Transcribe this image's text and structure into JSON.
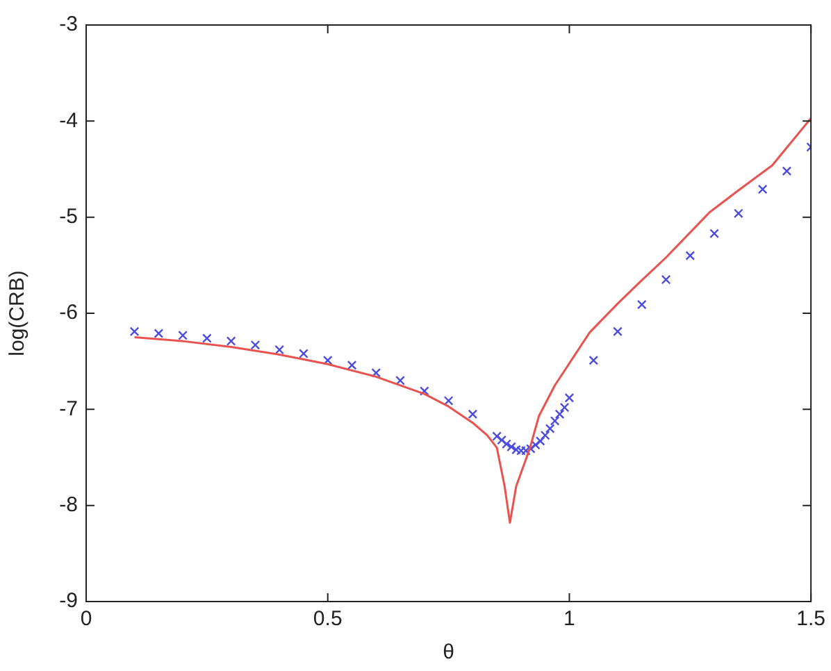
{
  "chart_data": {
    "type": "line",
    "xlabel": "θ",
    "ylabel": "log(CRB)",
    "xlim": [
      0,
      1.5
    ],
    "xticks": [
      0,
      0.5,
      1,
      1.5
    ],
    "ylim": [
      -9,
      -3
    ],
    "yticks": [
      -9,
      -8,
      -7,
      -6,
      -5,
      -4,
      -3
    ],
    "grid": false,
    "legend": false,
    "series": [
      {
        "color": "#e8524f",
        "marker": "none",
        "x": [
          0.1,
          0.2,
          0.3,
          0.4,
          0.5,
          0.6,
          0.7,
          0.75,
          0.8,
          0.83,
          0.85,
          0.866,
          0.877,
          0.89,
          0.918,
          0.937,
          0.97,
          1.042,
          1.1,
          1.147,
          1.2,
          1.29,
          1.35,
          1.42,
          1.5
        ],
        "values": [
          -6.25,
          -6.29,
          -6.35,
          -6.43,
          -6.53,
          -6.66,
          -6.84,
          -6.97,
          -7.14,
          -7.27,
          -7.4,
          -7.8,
          -8.18,
          -7.8,
          -7.41,
          -7.07,
          -6.75,
          -6.2,
          -5.9,
          -5.67,
          -5.42,
          -4.95,
          -4.72,
          -4.46,
          -3.97
        ]
      },
      {
        "type": "scatter",
        "color": "#4b4be0",
        "marker": "cross",
        "x": [
          0.1,
          0.15,
          0.2,
          0.25,
          0.3,
          0.35,
          0.4,
          0.45,
          0.5,
          0.55,
          0.6,
          0.65,
          0.7,
          0.75,
          0.8,
          0.85,
          0.86,
          0.87,
          0.88,
          0.89,
          0.9,
          0.91,
          0.92,
          0.93,
          0.94,
          0.95,
          0.96,
          0.97,
          0.98,
          0.99,
          1.0,
          1.05,
          1.1,
          1.15,
          1.2,
          1.25,
          1.3,
          1.35,
          1.4,
          1.45,
          1.5
        ],
        "values": [
          -6.19,
          -6.21,
          -6.23,
          -6.26,
          -6.29,
          -6.33,
          -6.38,
          -6.42,
          -6.49,
          -6.54,
          -6.62,
          -6.7,
          -6.81,
          -6.91,
          -7.05,
          -7.28,
          -7.32,
          -7.36,
          -7.39,
          -7.42,
          -7.43,
          -7.43,
          -7.41,
          -7.37,
          -7.33,
          -7.27,
          -7.2,
          -7.12,
          -7.05,
          -6.98,
          -6.88,
          -6.49,
          -6.19,
          -5.91,
          -5.65,
          -5.4,
          -5.17,
          -4.96,
          -4.71,
          -4.52,
          -4.27
        ]
      }
    ]
  }
}
